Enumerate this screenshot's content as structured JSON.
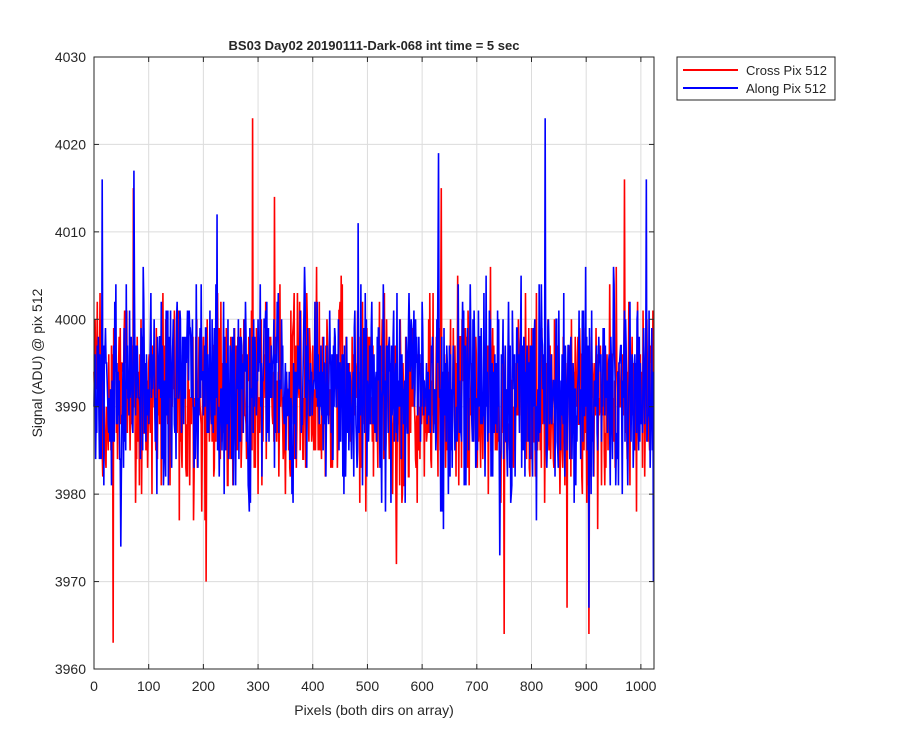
{
  "chart_data": {
    "type": "line",
    "title": "BS03 Day02 20190111-Dark-068 int time = 5 sec",
    "xlabel": "Pixels (both dirs on array)",
    "ylabel": "Signal (ADU) @ pix 512",
    "xlim": [
      0,
      1024
    ],
    "ylim": [
      3960,
      4030
    ],
    "xticks": [
      0,
      100,
      200,
      300,
      400,
      500,
      600,
      700,
      800,
      900,
      1000
    ],
    "yticks": [
      3960,
      3970,
      3980,
      3990,
      4000,
      4010,
      4020,
      4030
    ],
    "grid": true,
    "legend_position": "outside top-right",
    "series": [
      {
        "name": "Cross Pix 512",
        "color": "#ff0000",
        "mean": 3991,
        "n_points": 1024,
        "x": [
          0,
          35,
          72,
          205,
          290,
          330,
          635,
          750,
          865,
          905,
          970
        ],
        "y": [
          3994,
          3963,
          4015,
          3970,
          4023,
          4014,
          4015,
          3964,
          3967,
          3964,
          4016
        ]
      },
      {
        "name": "Along Pix 512",
        "color": "#0000ff",
        "mean": 3992,
        "n_points": 1024,
        "x": [
          0,
          15,
          73,
          225,
          630,
          825,
          905,
          1010,
          1024
        ],
        "y": [
          3990,
          4016,
          4017,
          4012,
          4019,
          4023,
          3967,
          4016,
          3970
        ]
      }
    ]
  }
}
